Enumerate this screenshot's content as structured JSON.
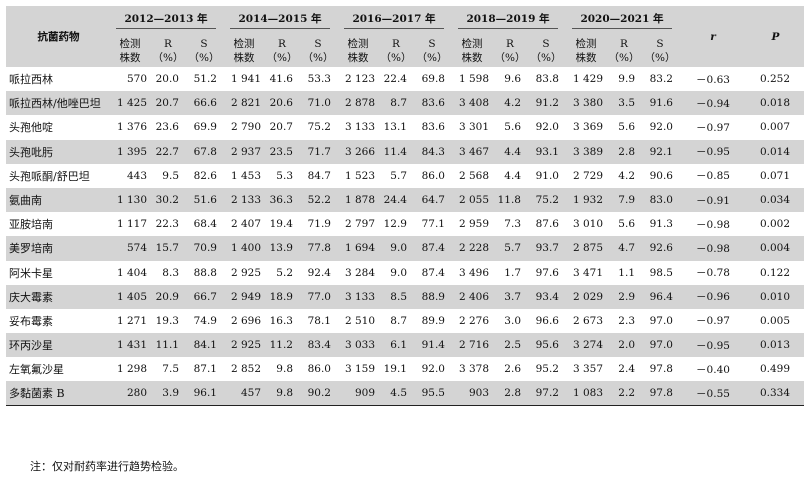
{
  "header": {
    "drug_label": "抗菌药物",
    "periods": [
      "2012—2013 年",
      "2014—2015 年",
      "2016—2017 年",
      "2018—2019 年",
      "2020—2021 年"
    ],
    "sub_count": "检测\n株数",
    "sub_R": "R\n（%）",
    "sub_S": "S\n（%）",
    "r_label": "r",
    "p_label": "P"
  },
  "rows": [
    {
      "drug": "哌拉西林",
      "cells": [
        "570",
        "20.0",
        "51.2",
        "1 941",
        "41.6",
        "53.3",
        "2 123",
        "22.4",
        "69.8",
        "1 598",
        "9.6",
        "83.8",
        "1 429",
        "9.9",
        "83.2"
      ],
      "r": "－0.63",
      "p": "0.252"
    },
    {
      "drug": "哌拉西林/他唑巴坦",
      "cells": [
        "1 425",
        "20.7",
        "66.6",
        "2 821",
        "20.6",
        "71.0",
        "2 878",
        "8.7",
        "83.6",
        "3 408",
        "4.2",
        "91.2",
        "3 380",
        "3.5",
        "91.6"
      ],
      "r": "－0.94",
      "p": "0.018"
    },
    {
      "drug": "头孢他啶",
      "cells": [
        "1 376",
        "23.6",
        "69.9",
        "2 790",
        "20.7",
        "75.2",
        "3 133",
        "13.1",
        "83.6",
        "3 301",
        "5.6",
        "92.0",
        "3 369",
        "5.6",
        "92.0"
      ],
      "r": "－0.97",
      "p": "0.007"
    },
    {
      "drug": "头孢吡肟",
      "cells": [
        "1 395",
        "22.7",
        "67.8",
        "2 937",
        "23.5",
        "71.7",
        "3 266",
        "11.4",
        "84.3",
        "3 467",
        "4.4",
        "93.1",
        "3 389",
        "2.8",
        "92.1"
      ],
      "r": "－0.95",
      "p": "0.014"
    },
    {
      "drug": "头孢哌酮/舒巴坦",
      "cells": [
        "443",
        "9.5",
        "82.6",
        "1 453",
        "5.3",
        "84.7",
        "1 523",
        "5.7",
        "86.0",
        "2 568",
        "4.4",
        "91.0",
        "2 729",
        "4.2",
        "90.6"
      ],
      "r": "－0.85",
      "p": "0.071"
    },
    {
      "drug": "氨曲南",
      "cells": [
        "1 130",
        "30.2",
        "51.6",
        "2 133",
        "36.3",
        "52.2",
        "1 878",
        "24.4",
        "64.7",
        "2 055",
        "11.8",
        "75.2",
        "1 932",
        "7.9",
        "83.0"
      ],
      "r": "－0.91",
      "p": "0.034"
    },
    {
      "drug": "亚胺培南",
      "cells": [
        "1 117",
        "22.3",
        "68.4",
        "2 407",
        "19.4",
        "71.9",
        "2 797",
        "12.9",
        "77.1",
        "2 959",
        "7.3",
        "87.6",
        "3 010",
        "5.6",
        "91.3"
      ],
      "r": "－0.98",
      "p": "0.002"
    },
    {
      "drug": "美罗培南",
      "cells": [
        "574",
        "15.7",
        "70.9",
        "1 400",
        "13.9",
        "77.8",
        "1 694",
        "9.0",
        "87.4",
        "2 228",
        "5.7",
        "93.7",
        "2 875",
        "4.7",
        "92.6"
      ],
      "r": "－0.98",
      "p": "0.004"
    },
    {
      "drug": "阿米卡星",
      "cells": [
        "1 404",
        "8.3",
        "88.8",
        "2 925",
        "5.2",
        "92.4",
        "3 284",
        "9.0",
        "87.4",
        "3 496",
        "1.7",
        "97.6",
        "3 471",
        "1.1",
        "98.5"
      ],
      "r": "－0.78",
      "p": "0.122"
    },
    {
      "drug": "庆大霉素",
      "cells": [
        "1 405",
        "20.9",
        "66.7",
        "2 949",
        "18.9",
        "77.0",
        "3 133",
        "8.5",
        "88.9",
        "2 406",
        "3.7",
        "93.4",
        "2 029",
        "2.9",
        "96.4"
      ],
      "r": "－0.96",
      "p": "0.010"
    },
    {
      "drug": "妥布霉素",
      "cells": [
        "1 271",
        "19.3",
        "74.9",
        "2 696",
        "16.3",
        "78.1",
        "2 510",
        "8.7",
        "89.9",
        "2 276",
        "3.0",
        "96.6",
        "2 673",
        "2.3",
        "97.0"
      ],
      "r": "－0.97",
      "p": "0.005"
    },
    {
      "drug": "环丙沙星",
      "cells": [
        "1 431",
        "11.1",
        "84.1",
        "2 925",
        "11.2",
        "83.4",
        "3 033",
        "6.1",
        "91.4",
        "2 716",
        "2.5",
        "95.6",
        "3 274",
        "2.0",
        "97.0"
      ],
      "r": "－0.95",
      "p": "0.013"
    },
    {
      "drug": "左氧氟沙星",
      "cells": [
        "1 298",
        "7.5",
        "87.1",
        "2 852",
        "9.8",
        "86.0",
        "3 159",
        "19.1",
        "92.0",
        "3 378",
        "2.6",
        "95.2",
        "3 357",
        "2.4",
        "97.8"
      ],
      "r": "－0.40",
      "p": "0.499"
    },
    {
      "drug": "多黏菌素 B",
      "cells": [
        "280",
        "3.9",
        "96.1",
        "457",
        "9.8",
        "90.2",
        "909",
        "4.5",
        "95.5",
        "903",
        "2.8",
        "97.2",
        "1 083",
        "2.2",
        "97.8"
      ],
      "r": "－0.55",
      "p": "0.334"
    }
  ],
  "note": "注：仅对耐药率进行趋势检验。"
}
